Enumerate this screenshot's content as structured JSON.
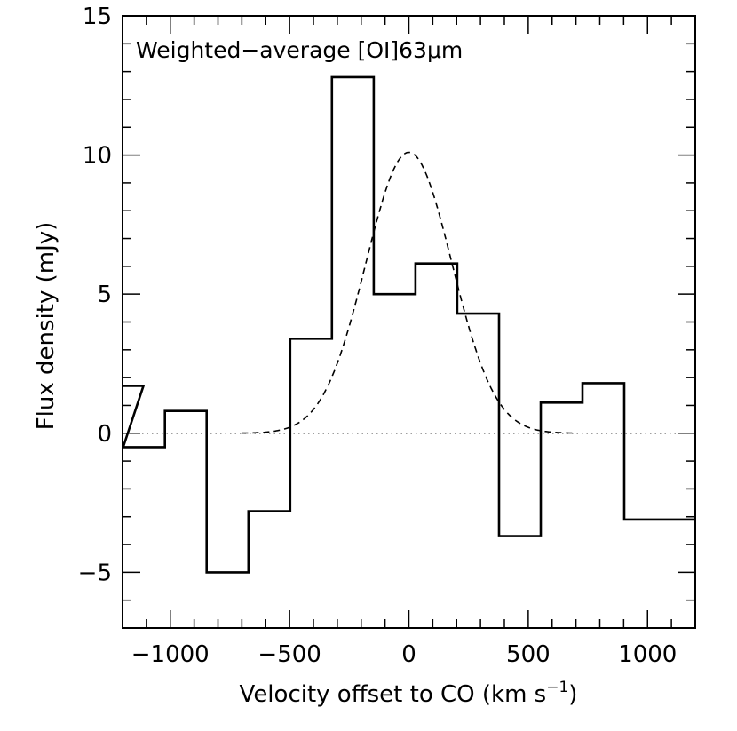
{
  "chart_data": {
    "type": "line",
    "title": "Weighted−average [OI]63μm",
    "xlabel": "Velocity offset to CO (km s",
    "xlabel_superscript": "−1",
    "xlabel_suffix": ")",
    "ylabel": "Flux density (mJy)",
    "xlim": [
      -1200,
      1200
    ],
    "ylim": [
      -7,
      15
    ],
    "x_major_ticks": [
      -1000,
      -500,
      0,
      500,
      1000
    ],
    "x_tick_labels": [
      "−1000",
      "−500",
      "0",
      "500",
      "1000"
    ],
    "x_minor_step": 100,
    "y_major_ticks": [
      -5,
      0,
      5,
      10,
      15
    ],
    "y_tick_labels": [
      "−5",
      "0",
      "5",
      "10",
      "15"
    ],
    "y_minor_step": 1,
    "series": [
      {
        "name": "Weighted-average [OI]63μm spectrum",
        "style": "steps-mid",
        "channel_width": 175,
        "x": [
          -1200,
          -1110,
          -935,
          -760,
          -585,
          -410,
          -235,
          -60,
          115,
          290,
          465,
          640,
          815,
          990,
          1165
        ],
        "values": [
          1.7,
          -0.5,
          0.8,
          -5.0,
          -2.8,
          3.4,
          12.8,
          5.0,
          6.1,
          4.3,
          -3.7,
          1.1,
          1.8,
          -3.1,
          -3.1
        ]
      },
      {
        "name": "Gaussian fit",
        "style": "dashed",
        "amplitude": 10.1,
        "center": 0,
        "sigma": 180
      },
      {
        "name": "Zero level",
        "style": "dotted",
        "value": 0
      }
    ]
  }
}
